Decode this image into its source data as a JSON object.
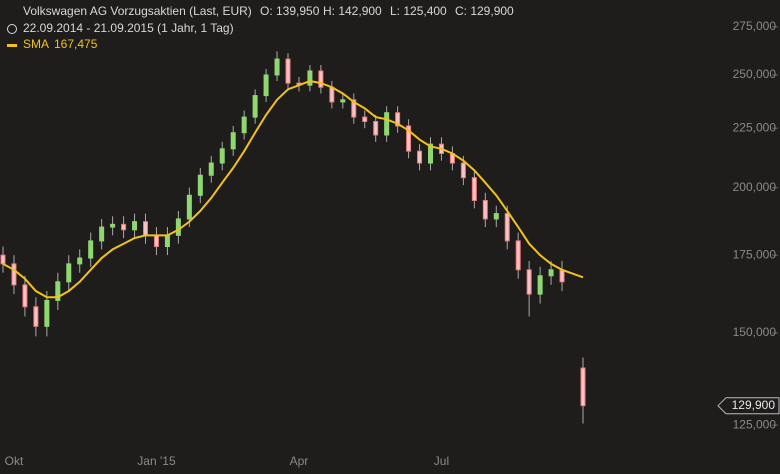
{
  "chart_data": {
    "type": "candlestick",
    "title": "Volkswagen AG Vorzugsaktien (Last, EUR)",
    "ohlc_labels": [
      "O: 139,950",
      "H: 142,900",
      "L: 125,400",
      "C: 129,900"
    ],
    "subtitle": "22.09.2014 - 21.09.2015 (1 Jahr, 1 Tag)",
    "categories": [
      null,
      "Okt",
      null,
      null,
      null,
      null,
      null,
      null,
      null,
      null,
      null,
      null,
      null,
      null,
      "Jan '15",
      null,
      null,
      null,
      null,
      null,
      null,
      null,
      null,
      null,
      null,
      null,
      null,
      "Apr",
      null,
      null,
      null,
      null,
      null,
      null,
      null,
      null,
      null,
      null,
      null,
      null,
      "Jul",
      null,
      null,
      null,
      null,
      null,
      null,
      null,
      null,
      null,
      null,
      null,
      null
    ],
    "open": [
      175000,
      172000,
      165000,
      158000,
      152000,
      160000,
      166000,
      172000,
      174000,
      180000,
      185000,
      186000,
      184000,
      187000,
      182000,
      178000,
      182000,
      188000,
      197000,
      205000,
      210000,
      216000,
      223000,
      230000,
      240000,
      250000,
      258000,
      246000,
      245000,
      252000,
      244000,
      237000,
      238000,
      230000,
      228000,
      222000,
      232000,
      226000,
      215000,
      210000,
      218000,
      214000,
      210000,
      204000,
      195000,
      188000,
      190000,
      180000,
      170000,
      162000,
      168000,
      170000,
      139950
    ],
    "high": [
      178000,
      175000,
      168000,
      161000,
      163000,
      169000,
      175000,
      177000,
      183000,
      188000,
      189000,
      189000,
      190000,
      190000,
      185000,
      185000,
      191000,
      200000,
      208000,
      213000,
      219000,
      226000,
      233000,
      243000,
      253000,
      262000,
      261000,
      249000,
      255000,
      255000,
      247000,
      241000,
      241000,
      233000,
      231000,
      235000,
      235000,
      229000,
      218000,
      221000,
      221000,
      217000,
      213000,
      207000,
      198000,
      193000,
      193000,
      183000,
      173000,
      171000,
      173000,
      173000,
      142900
    ],
    "low": [
      169000,
      162000,
      155000,
      149000,
      149000,
      157000,
      163000,
      169000,
      171000,
      177000,
      182000,
      181000,
      181000,
      179000,
      175000,
      175000,
      179000,
      185000,
      194000,
      202000,
      207000,
      213000,
      220000,
      227000,
      237000,
      247000,
      243000,
      242000,
      242000,
      241000,
      234000,
      234000,
      227000,
      225000,
      219000,
      219000,
      223000,
      212000,
      207000,
      207000,
      211000,
      207000,
      201000,
      192000,
      185000,
      185000,
      177000,
      167000,
      155000,
      159000,
      165000,
      163000,
      125400
    ],
    "close": [
      172000,
      165000,
      158000,
      152000,
      160000,
      166000,
      172000,
      174000,
      180000,
      185000,
      186000,
      184000,
      187000,
      182000,
      178000,
      182000,
      188000,
      197000,
      205000,
      210000,
      216000,
      223000,
      230000,
      240000,
      250000,
      258000,
      246000,
      245000,
      252000,
      244000,
      237000,
      238000,
      230000,
      228000,
      222000,
      232000,
      226000,
      215000,
      210000,
      218000,
      214000,
      210000,
      204000,
      195000,
      188000,
      190000,
      180000,
      170000,
      162000,
      168000,
      170000,
      166000,
      129900
    ],
    "up_color": "#8fd86f",
    "down_color": "#f07a7a",
    "sma": {
      "name": "SMA",
      "color": "#f2c21b",
      "last_label": "167,475",
      "values": [
        172000,
        170000,
        167000,
        163000,
        161000,
        161000,
        163000,
        166000,
        170000,
        174000,
        177000,
        179000,
        181000,
        182000,
        182000,
        182000,
        184000,
        187000,
        191000,
        196000,
        202000,
        208000,
        215000,
        223000,
        231000,
        238000,
        243000,
        245000,
        247000,
        246000,
        244000,
        241000,
        237000,
        234000,
        230000,
        229000,
        227000,
        224000,
        220000,
        217000,
        216000,
        214000,
        211000,
        207000,
        202000,
        197000,
        191000,
        185000,
        179000,
        175000,
        172000,
        170000,
        167475
      ]
    },
    "last_price": {
      "value": 129900,
      "label": "129,900"
    },
    "log_scale": true,
    "ylim": [
      119700,
      290000
    ],
    "yticks": [
      {
        "value": 125000,
        "label": "125,000"
      },
      {
        "value": 150000,
        "label": "150,000"
      },
      {
        "value": 175000,
        "label": "175,000"
      },
      {
        "value": 200000,
        "label": "200,000"
      },
      {
        "value": 225000,
        "label": "225,000"
      },
      {
        "value": 250000,
        "label": "250,000"
      },
      {
        "value": 275000,
        "label": "275,000"
      }
    ]
  }
}
